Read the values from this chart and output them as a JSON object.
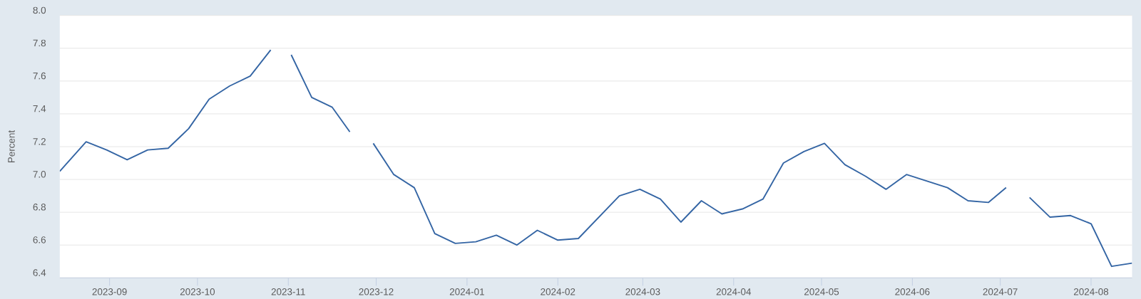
{
  "chart_data": {
    "type": "line",
    "ylabel": "Percent",
    "xlim": [
      "2023-08-15",
      "2024-08-15"
    ],
    "ylim": [
      6.4,
      8
    ],
    "xticks": [
      "2023-09",
      "2023-10",
      "2023-11",
      "2023-12",
      "2024-01",
      "2024-02",
      "2024-03",
      "2024-04",
      "2024-05",
      "2024-06",
      "2024-07",
      "2024-08"
    ],
    "yticks": [
      6.4,
      6.6,
      6.8,
      {
        "value": 7,
        "label": "7.0"
      },
      7.2,
      7.4,
      7.6,
      7.8,
      {
        "value": 8,
        "label": "8.0"
      }
    ],
    "grid": "y",
    "line_style": "solid",
    "series": [
      {
        "color": "#3465a4",
        "x": [
          "2023-08-15",
          "2023-08-17",
          "2023-08-24",
          "2023-08-31",
          "2023-09-07",
          "2023-09-14",
          "2023-09-21",
          "2023-09-28",
          "2023-10-05",
          "2023-10-12",
          "2023-10-19",
          "2023-10-26"
        ],
        "values": [
          7.05,
          7.09,
          7.23,
          7.18,
          7.12,
          7.18,
          7.19,
          7.31,
          7.49,
          7.57,
          7.63,
          7.79
        ]
      },
      {
        "color": "#3465a4",
        "x": [
          "2023-11-02",
          "2023-11-09",
          "2023-11-16",
          "2023-11-22"
        ],
        "values": [
          7.76,
          7.5,
          7.44,
          7.29
        ]
      },
      {
        "color": "#3465a4",
        "x": [
          "2023-11-30",
          "2023-12-07",
          "2023-12-14",
          "2023-12-21",
          "2023-12-28",
          "2024-01-04",
          "2024-01-11",
          "2024-01-18",
          "2024-01-25",
          "2024-02-01",
          "2024-02-08",
          "2024-02-15",
          "2024-02-22",
          "2024-02-29",
          "2024-03-07",
          "2024-03-14",
          "2024-03-21",
          "2024-03-28",
          "2024-04-04",
          "2024-04-11",
          "2024-04-18",
          "2024-04-25",
          "2024-05-02",
          "2024-05-09",
          "2024-05-16",
          "2024-05-23",
          "2024-05-30",
          "2024-06-06",
          "2024-06-13",
          "2024-06-20",
          "2024-06-27",
          "2024-07-03"
        ],
        "values": [
          7.22,
          7.03,
          6.95,
          6.67,
          6.61,
          6.62,
          6.66,
          6.6,
          6.69,
          6.63,
          6.64,
          6.77,
          6.9,
          6.94,
          6.88,
          6.74,
          6.87,
          6.79,
          6.82,
          6.88,
          7.1,
          7.17,
          7.22,
          7.09,
          7.02,
          6.94,
          7.03,
          6.99,
          6.95,
          6.87,
          6.86,
          6.95
        ]
      },
      {
        "color": "#3465a4",
        "x": [
          "2024-07-11",
          "2024-07-18",
          "2024-07-25",
          "2024-08-01",
          "2024-08-08",
          "2024-08-15"
        ],
        "values": [
          6.89,
          6.77,
          6.78,
          6.73,
          6.47,
          6.49
        ]
      }
    ]
  }
}
